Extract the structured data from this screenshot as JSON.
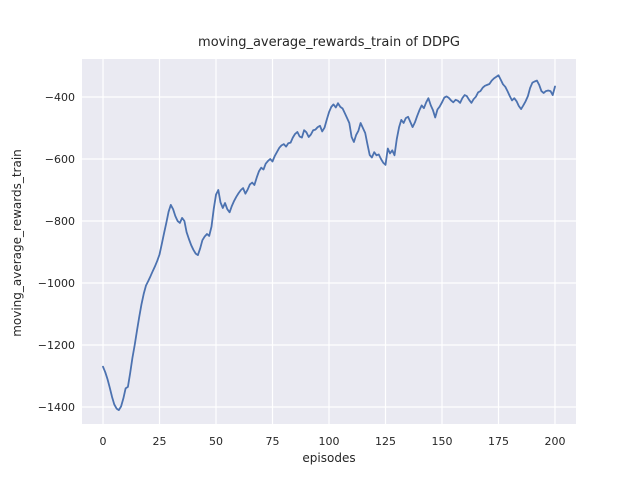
{
  "figure": {
    "background": "#ffffff"
  },
  "colors": {
    "plot_background": "#eaeaf2",
    "grid": "#ffffff",
    "text": "#262626",
    "line": "#4c72b0"
  },
  "chart_data": {
    "type": "line",
    "title": "moving_average_rewards_train of DDPG",
    "xlabel": "episodes",
    "ylabel": "moving_average_rewards_train",
    "legend_position": "none",
    "grid": true,
    "xticks": [
      0,
      25,
      50,
      75,
      100,
      125,
      150,
      175,
      200
    ],
    "yticks": [
      -400,
      -600,
      -800,
      -1000,
      -1200,
      -1400
    ],
    "xlim": [
      -9.3,
      209.3
    ],
    "ylim": [
      -1454.8,
      -277.4
    ],
    "series": [
      {
        "name": "moving_average_rewards_train",
        "color": "#4c72b0",
        "x_start": 0,
        "x_step": 1,
        "values": [
          -1270,
          -1288,
          -1310,
          -1338,
          -1368,
          -1392,
          -1405,
          -1410,
          -1398,
          -1372,
          -1340,
          -1335,
          -1292,
          -1242,
          -1200,
          -1155,
          -1110,
          -1070,
          -1035,
          -1008,
          -994,
          -978,
          -962,
          -946,
          -928,
          -908,
          -874,
          -840,
          -806,
          -770,
          -748,
          -762,
          -784,
          -800,
          -806,
          -790,
          -800,
          -836,
          -858,
          -878,
          -893,
          -905,
          -910,
          -888,
          -862,
          -850,
          -842,
          -848,
          -818,
          -762,
          -715,
          -700,
          -740,
          -758,
          -742,
          -762,
          -772,
          -752,
          -735,
          -722,
          -710,
          -700,
          -694,
          -712,
          -699,
          -682,
          -676,
          -684,
          -660,
          -640,
          -628,
          -634,
          -615,
          -606,
          -600,
          -608,
          -590,
          -577,
          -564,
          -556,
          -552,
          -560,
          -549,
          -547,
          -531,
          -519,
          -513,
          -527,
          -531,
          -507,
          -514,
          -529,
          -521,
          -507,
          -505,
          -497,
          -493,
          -511,
          -499,
          -474,
          -449,
          -432,
          -424,
          -434,
          -420,
          -432,
          -437,
          -452,
          -468,
          -484,
          -529,
          -545,
          -523,
          -509,
          -484,
          -500,
          -516,
          -552,
          -587,
          -595,
          -578,
          -588,
          -585,
          -600,
          -612,
          -619,
          -566,
          -582,
          -572,
          -588,
          -535,
          -497,
          -474,
          -484,
          -468,
          -464,
          -481,
          -497,
          -482,
          -462,
          -443,
          -427,
          -436,
          -417,
          -404,
          -426,
          -443,
          -466,
          -440,
          -431,
          -417,
          -402,
          -398,
          -403,
          -411,
          -417,
          -409,
          -412,
          -419,
          -404,
          -394,
          -397,
          -409,
          -419,
          -407,
          -399,
          -385,
          -381,
          -370,
          -364,
          -361,
          -358,
          -347,
          -340,
          -335,
          -330,
          -344,
          -359,
          -367,
          -381,
          -397,
          -411,
          -404,
          -414,
          -429,
          -439,
          -427,
          -414,
          -397,
          -371,
          -354,
          -350,
          -347,
          -361,
          -381,
          -387,
          -381,
          -379,
          -381,
          -394,
          -366
        ]
      }
    ]
  }
}
